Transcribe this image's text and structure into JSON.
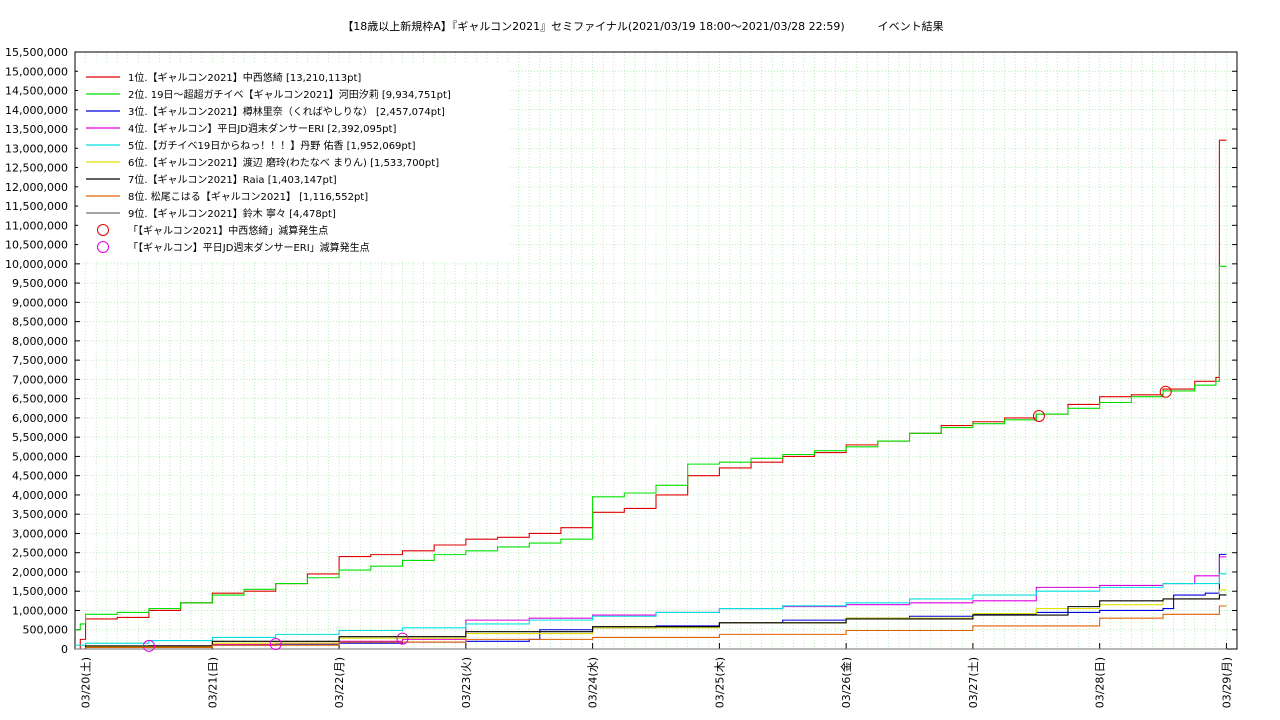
{
  "chart_data": {
    "type": "line",
    "title": "【18歳以上新規枠A】『ギャルコン2021』セミファイナル(2021/03/19 18:00～2021/03/28 22:59)　　　イベント結果",
    "xlabel": "",
    "ylabel": "",
    "ylim": [
      0,
      15500000
    ],
    "xlim": [
      "2021-03-19T22:00",
      "2021-03-29T02:00"
    ],
    "y_ticks": [
      "0",
      "500,000",
      "1,000,000",
      "1,500,000",
      "2,000,000",
      "2,500,000",
      "3,000,000",
      "3,500,000",
      "4,000,000",
      "4,500,000",
      "5,000,000",
      "5,500,000",
      "6,000,000",
      "6,500,000",
      "7,000,000",
      "7,500,000",
      "8,000,000",
      "8,500,000",
      "9,000,000",
      "9,500,000",
      "10,000,000",
      "10,500,000",
      "11,000,000",
      "11,500,000",
      "12,000,000",
      "12,500,000",
      "13,000,000",
      "13,500,000",
      "14,000,000",
      "14,500,000",
      "15,000,000",
      "15,500,000"
    ],
    "x_ticks": [
      {
        "label": "03/20(土)",
        "date": "2021-03-20T00:00"
      },
      {
        "label": "03/21(日)",
        "date": "2021-03-21T00:00"
      },
      {
        "label": "03/22(月)",
        "date": "2021-03-22T00:00"
      },
      {
        "label": "03/23(火)",
        "date": "2021-03-23T00:00"
      },
      {
        "label": "03/24(水)",
        "date": "2021-03-24T00:00"
      },
      {
        "label": "03/25(木)",
        "date": "2021-03-25T00:00"
      },
      {
        "label": "03/26(金)",
        "date": "2021-03-26T00:00"
      },
      {
        "label": "03/27(土)",
        "date": "2021-03-27T00:00"
      },
      {
        "label": "03/28(日)",
        "date": "2021-03-28T00:00"
      },
      {
        "label": "03/29(月)",
        "date": "2021-03-29T00:00"
      }
    ],
    "grid": true,
    "legend_position": "top-left",
    "series": [
      {
        "name": "1位.【ギャルコン2021】中西悠綺 [13,210,113pt]",
        "color": "#e00000",
        "points": [
          [
            "2021-03-19T22:00",
            0
          ],
          [
            "2021-03-19T23:00",
            250000
          ],
          [
            "2021-03-20T00:00",
            780000
          ],
          [
            "2021-03-20T06:00",
            820000
          ],
          [
            "2021-03-20T12:00",
            1000000
          ],
          [
            "2021-03-20T18:00",
            1200000
          ],
          [
            "2021-03-21T00:00",
            1450000
          ],
          [
            "2021-03-21T06:00",
            1500000
          ],
          [
            "2021-03-21T12:00",
            1700000
          ],
          [
            "2021-03-21T18:00",
            1950000
          ],
          [
            "2021-03-22T00:00",
            2400000
          ],
          [
            "2021-03-22T06:00",
            2450000
          ],
          [
            "2021-03-22T12:00",
            2550000
          ],
          [
            "2021-03-22T18:00",
            2700000
          ],
          [
            "2021-03-23T00:00",
            2850000
          ],
          [
            "2021-03-23T06:00",
            2900000
          ],
          [
            "2021-03-23T12:00",
            3000000
          ],
          [
            "2021-03-23T18:00",
            3150000
          ],
          [
            "2021-03-24T00:00",
            3550000
          ],
          [
            "2021-03-24T06:00",
            3650000
          ],
          [
            "2021-03-24T12:00",
            4000000
          ],
          [
            "2021-03-24T18:00",
            4500000
          ],
          [
            "2021-03-25T00:00",
            4700000
          ],
          [
            "2021-03-25T06:00",
            4850000
          ],
          [
            "2021-03-25T12:00",
            5000000
          ],
          [
            "2021-03-25T18:00",
            5100000
          ],
          [
            "2021-03-26T00:00",
            5300000
          ],
          [
            "2021-03-26T06:00",
            5400000
          ],
          [
            "2021-03-26T12:00",
            5600000
          ],
          [
            "2021-03-26T18:00",
            5800000
          ],
          [
            "2021-03-27T00:00",
            5900000
          ],
          [
            "2021-03-27T06:00",
            6000000
          ],
          [
            "2021-03-27T12:00",
            6100000
          ],
          [
            "2021-03-27T18:00",
            6350000
          ],
          [
            "2021-03-28T00:00",
            6550000
          ],
          [
            "2021-03-28T06:00",
            6600000
          ],
          [
            "2021-03-28T12:00",
            6750000
          ],
          [
            "2021-03-28T18:00",
            6950000
          ],
          [
            "2021-03-28T22:00",
            7050000
          ],
          [
            "2021-03-28T22:40",
            13210113
          ],
          [
            "2021-03-29T00:00",
            13210113
          ]
        ]
      },
      {
        "name": "2位. 19日～超超ガチイベ【ギャルコン2021】河田汐莉 [9,934,751pt]",
        "color": "#00e000",
        "points": [
          [
            "2021-03-19T22:00",
            500000
          ],
          [
            "2021-03-19T23:00",
            650000
          ],
          [
            "2021-03-20T00:00",
            900000
          ],
          [
            "2021-03-20T06:00",
            950000
          ],
          [
            "2021-03-20T12:00",
            1050000
          ],
          [
            "2021-03-20T18:00",
            1200000
          ],
          [
            "2021-03-21T00:00",
            1400000
          ],
          [
            "2021-03-21T06:00",
            1550000
          ],
          [
            "2021-03-21T12:00",
            1700000
          ],
          [
            "2021-03-21T18:00",
            1850000
          ],
          [
            "2021-03-22T00:00",
            2050000
          ],
          [
            "2021-03-22T06:00",
            2150000
          ],
          [
            "2021-03-22T12:00",
            2300000
          ],
          [
            "2021-03-22T18:00",
            2450000
          ],
          [
            "2021-03-23T00:00",
            2550000
          ],
          [
            "2021-03-23T06:00",
            2650000
          ],
          [
            "2021-03-23T12:00",
            2750000
          ],
          [
            "2021-03-23T18:00",
            2850000
          ],
          [
            "2021-03-24T00:00",
            3950000
          ],
          [
            "2021-03-24T06:00",
            4050000
          ],
          [
            "2021-03-24T12:00",
            4250000
          ],
          [
            "2021-03-24T18:00",
            4800000
          ],
          [
            "2021-03-25T00:00",
            4850000
          ],
          [
            "2021-03-25T06:00",
            4950000
          ],
          [
            "2021-03-25T12:00",
            5050000
          ],
          [
            "2021-03-25T18:00",
            5150000
          ],
          [
            "2021-03-26T00:00",
            5250000
          ],
          [
            "2021-03-26T06:00",
            5400000
          ],
          [
            "2021-03-26T12:00",
            5600000
          ],
          [
            "2021-03-26T18:00",
            5750000
          ],
          [
            "2021-03-27T00:00",
            5850000
          ],
          [
            "2021-03-27T06:00",
            5950000
          ],
          [
            "2021-03-27T12:00",
            6100000
          ],
          [
            "2021-03-27T18:00",
            6250000
          ],
          [
            "2021-03-28T00:00",
            6400000
          ],
          [
            "2021-03-28T06:00",
            6550000
          ],
          [
            "2021-03-28T12:00",
            6700000
          ],
          [
            "2021-03-28T18:00",
            6850000
          ],
          [
            "2021-03-28T22:00",
            6950000
          ],
          [
            "2021-03-28T22:40",
            9934751
          ],
          [
            "2021-03-29T00:00",
            9934751
          ]
        ]
      },
      {
        "name": "3位.【ギャルコン2021】樽林里奈（くればやしりな） [2,457,074pt]",
        "color": "#0000e0",
        "points": [
          [
            "2021-03-19T22:00",
            0
          ],
          [
            "2021-03-20T00:00",
            50000
          ],
          [
            "2021-03-20T12:00",
            80000
          ],
          [
            "2021-03-21T00:00",
            100000
          ],
          [
            "2021-03-21T12:00",
            130000
          ],
          [
            "2021-03-22T00:00",
            150000
          ],
          [
            "2021-03-22T12:00",
            180000
          ],
          [
            "2021-03-23T00:00",
            200000
          ],
          [
            "2021-03-23T12:00",
            250000
          ],
          [
            "2021-03-23T14:00",
            500000
          ],
          [
            "2021-03-24T00:00",
            550000
          ],
          [
            "2021-03-24T12:00",
            600000
          ],
          [
            "2021-03-25T00:00",
            680000
          ],
          [
            "2021-03-25T12:00",
            750000
          ],
          [
            "2021-03-26T00:00",
            800000
          ],
          [
            "2021-03-26T12:00",
            850000
          ],
          [
            "2021-03-27T00:00",
            900000
          ],
          [
            "2021-03-27T12:00",
            950000
          ],
          [
            "2021-03-28T00:00",
            1000000
          ],
          [
            "2021-03-28T12:00",
            1050000
          ],
          [
            "2021-03-28T14:00",
            1400000
          ],
          [
            "2021-03-28T20:00",
            1450000
          ],
          [
            "2021-03-28T22:40",
            2457074
          ],
          [
            "2021-03-29T00:00",
            2457074
          ]
        ]
      },
      {
        "name": "4位.【ギャルコン】平日JD週末ダンサーERI [2,392,095pt]",
        "color": "#e000e0",
        "points": [
          [
            "2021-03-19T22:00",
            0
          ],
          [
            "2021-03-20T00:00",
            60000
          ],
          [
            "2021-03-20T12:00",
            80000
          ],
          [
            "2021-03-21T00:00",
            120000
          ],
          [
            "2021-03-21T12:00",
            150000
          ],
          [
            "2021-03-22T00:00",
            200000
          ],
          [
            "2021-03-22T12:00",
            250000
          ],
          [
            "2021-03-23T00:00",
            750000
          ],
          [
            "2021-03-23T12:00",
            800000
          ],
          [
            "2021-03-24T00:00",
            880000
          ],
          [
            "2021-03-24T12:00",
            950000
          ],
          [
            "2021-03-25T00:00",
            1050000
          ],
          [
            "2021-03-25T12:00",
            1100000
          ],
          [
            "2021-03-26T00:00",
            1150000
          ],
          [
            "2021-03-26T12:00",
            1200000
          ],
          [
            "2021-03-27T00:00",
            1250000
          ],
          [
            "2021-03-27T12:00",
            1600000
          ],
          [
            "2021-03-28T00:00",
            1650000
          ],
          [
            "2021-03-28T12:00",
            1700000
          ],
          [
            "2021-03-28T18:00",
            1900000
          ],
          [
            "2021-03-28T22:40",
            2392095
          ],
          [
            "2021-03-29T00:00",
            2392095
          ]
        ]
      },
      {
        "name": "5位.【ガチイベ19日からねっ！！！】丹野 佑香 [1,952,069pt]",
        "color": "#00e0e0",
        "points": [
          [
            "2021-03-19T22:00",
            100000
          ],
          [
            "2021-03-20T00:00",
            150000
          ],
          [
            "2021-03-20T12:00",
            220000
          ],
          [
            "2021-03-21T00:00",
            300000
          ],
          [
            "2021-03-21T12:00",
            380000
          ],
          [
            "2021-03-22T00:00",
            480000
          ],
          [
            "2021-03-22T12:00",
            550000
          ],
          [
            "2021-03-23T00:00",
            650000
          ],
          [
            "2021-03-23T12:00",
            750000
          ],
          [
            "2021-03-24T00:00",
            850000
          ],
          [
            "2021-03-24T12:00",
            950000
          ],
          [
            "2021-03-25T00:00",
            1050000
          ],
          [
            "2021-03-25T12:00",
            1120000
          ],
          [
            "2021-03-26T00:00",
            1200000
          ],
          [
            "2021-03-26T12:00",
            1300000
          ],
          [
            "2021-03-27T00:00",
            1400000
          ],
          [
            "2021-03-27T12:00",
            1500000
          ],
          [
            "2021-03-28T00:00",
            1600000
          ],
          [
            "2021-03-28T12:00",
            1700000
          ],
          [
            "2021-03-28T22:40",
            1952069
          ],
          [
            "2021-03-29T00:00",
            1952069
          ]
        ]
      },
      {
        "name": "6位.【ギャルコン2021】渡辺 磨玲(わたなべ まりん) [1,533,700pt]",
        "color": "#e0e000",
        "points": [
          [
            "2021-03-19T22:00",
            0
          ],
          [
            "2021-03-20T00:00",
            50000
          ],
          [
            "2021-03-21T00:00",
            150000
          ],
          [
            "2021-03-22T00:00",
            280000
          ],
          [
            "2021-03-23T00:00",
            400000
          ],
          [
            "2021-03-24T00:00",
            550000
          ],
          [
            "2021-03-25T00:00",
            680000
          ],
          [
            "2021-03-26T00:00",
            800000
          ],
          [
            "2021-03-27T00:00",
            920000
          ],
          [
            "2021-03-27T12:00",
            1050000
          ],
          [
            "2021-03-28T00:00",
            1150000
          ],
          [
            "2021-03-28T12:00",
            1300000
          ],
          [
            "2021-03-28T22:40",
            1533700
          ],
          [
            "2021-03-29T00:00",
            1533700
          ]
        ]
      },
      {
        "name": "7位.【ギャルコン2021】Raia [1,403,147pt]",
        "color": "#000000",
        "points": [
          [
            "2021-03-19T22:00",
            0
          ],
          [
            "2021-03-20T00:00",
            80000
          ],
          [
            "2021-03-21T00:00",
            200000
          ],
          [
            "2021-03-22T00:00",
            320000
          ],
          [
            "2021-03-23T00:00",
            450000
          ],
          [
            "2021-03-24T00:00",
            580000
          ],
          [
            "2021-03-25T00:00",
            680000
          ],
          [
            "2021-03-26T00:00",
            780000
          ],
          [
            "2021-03-27T00:00",
            880000
          ],
          [
            "2021-03-27T18:00",
            1100000
          ],
          [
            "2021-03-28T00:00",
            1250000
          ],
          [
            "2021-03-28T12:00",
            1300000
          ],
          [
            "2021-03-28T22:40",
            1403147
          ],
          [
            "2021-03-29T00:00",
            1403147
          ]
        ]
      },
      {
        "name": "8位. 松尾こはる【ギャルコン2021】 [1,116,552pt]",
        "color": "#e06000",
        "points": [
          [
            "2021-03-19T22:00",
            0
          ],
          [
            "2021-03-20T00:00",
            40000
          ],
          [
            "2021-03-21T00:00",
            100000
          ],
          [
            "2021-03-22T00:00",
            180000
          ],
          [
            "2021-03-23T00:00",
            250000
          ],
          [
            "2021-03-24T00:00",
            300000
          ],
          [
            "2021-03-25T00:00",
            380000
          ],
          [
            "2021-03-26T00:00",
            480000
          ],
          [
            "2021-03-27T00:00",
            600000
          ],
          [
            "2021-03-28T00:00",
            800000
          ],
          [
            "2021-03-28T12:00",
            900000
          ],
          [
            "2021-03-28T22:40",
            1116552
          ],
          [
            "2021-03-29T00:00",
            1116552
          ]
        ]
      },
      {
        "name": "9位.【ギャルコン2021】鈴木 寧々 [4,478pt]",
        "color": "#707070",
        "points": [
          [
            "2021-03-19T22:00",
            0
          ],
          [
            "2021-03-29T00:00",
            4478
          ]
        ]
      }
    ],
    "markers": [
      {
        "name": "「【ギャルコン2021】中西悠綺」減算発生点",
        "color": "#e00000",
        "points": [
          [
            "2021-03-27T12:30",
            6050000
          ],
          [
            "2021-03-28T12:30",
            6680000
          ]
        ]
      },
      {
        "name": "「【ギャルコン】平日JD週末ダンサーERI」減算発生点",
        "color": "#e000e0",
        "points": [
          [
            "2021-03-20T12:00",
            80000
          ],
          [
            "2021-03-21T12:00",
            130000
          ],
          [
            "2021-03-22T12:00",
            270000
          ]
        ]
      }
    ]
  }
}
